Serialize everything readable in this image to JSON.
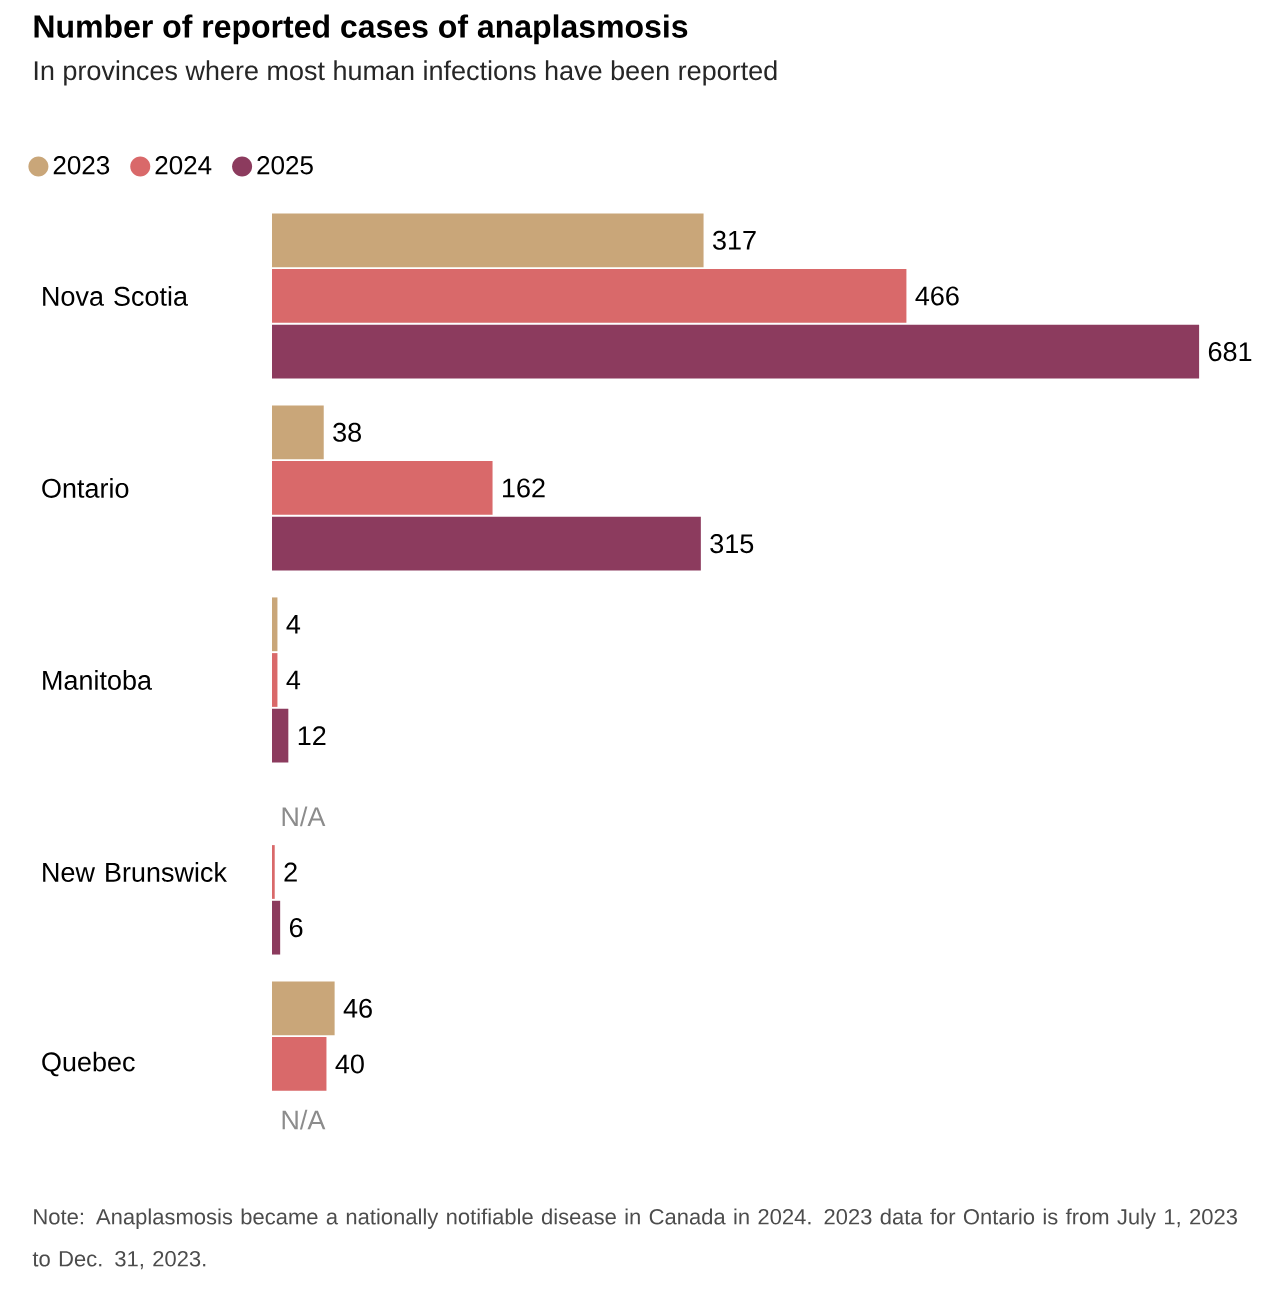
{
  "chart_data": {
    "type": "bar",
    "orientation": "horizontal",
    "title": "Number of reported cases of anaplasmosis",
    "subtitle": "In provinces where most human infections have been reported",
    "categories": [
      "Nova Scotia",
      "Ontario",
      "Manitoba",
      "New Brunswick",
      "Quebec"
    ],
    "series": [
      {
        "name": "2023",
        "color": "#c9a679",
        "values": [
          317,
          38,
          4,
          null,
          46
        ],
        "value_labels": [
          "317",
          "38",
          "4",
          "N/A",
          "46"
        ]
      },
      {
        "name": "2024",
        "color": "#d9696a",
        "values": [
          466,
          162,
          4,
          2,
          40
        ],
        "value_labels": [
          "466",
          "162",
          "4",
          "2",
          "40"
        ]
      },
      {
        "name": "2025",
        "color": "#8c3b5e",
        "values": [
          681,
          315,
          12,
          6,
          null
        ],
        "value_labels": [
          "681",
          "315",
          "12",
          "6",
          "N/A"
        ]
      }
    ],
    "legend": "top left",
    "annotations": [
      "Note: Anaplasmosis became a nationally notifiable disease in Canada in 2024. 2023 data for Ontario is from July 1, 2023 to Dec. 31, 2023."
    ]
  }
}
